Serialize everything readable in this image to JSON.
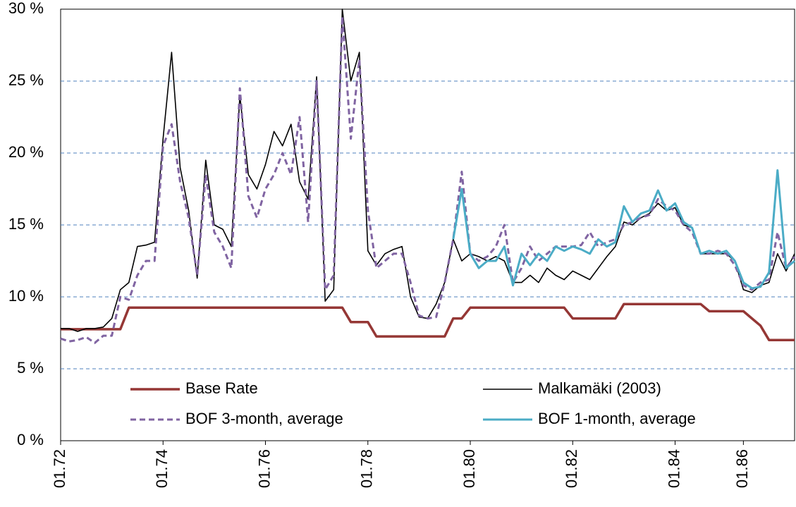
{
  "chart_data": {
    "type": "line",
    "categories": [
      "01.72",
      null,
      null,
      null,
      null,
      null,
      null,
      null,
      null,
      null,
      null,
      null,
      "01.74",
      null,
      null,
      null,
      null,
      null,
      null,
      null,
      null,
      null,
      null,
      null,
      "01.76",
      null,
      null,
      null,
      null,
      null,
      null,
      null,
      null,
      null,
      null,
      null,
      "01.78",
      null,
      null,
      null,
      null,
      null,
      null,
      null,
      null,
      null,
      null,
      null,
      "01.80",
      null,
      null,
      null,
      null,
      null,
      null,
      null,
      null,
      null,
      null,
      null,
      "01.82",
      null,
      null,
      null,
      null,
      null,
      null,
      null,
      null,
      null,
      null,
      null,
      "01.84",
      null,
      null,
      null,
      null,
      null,
      null,
      null,
      "01.86",
      null,
      null,
      null,
      null,
      null,
      null
    ],
    "series": [
      {
        "name": "Base Rate",
        "color": "#953735",
        "width": 3.5,
        "dash": false,
        "values": [
          7.75,
          7.75,
          7.75,
          7.75,
          7.75,
          7.75,
          7.75,
          7.75,
          9.25,
          9.25,
          9.25,
          9.25,
          9.25,
          9.25,
          9.25,
          9.25,
          9.25,
          9.25,
          9.25,
          9.25,
          9.25,
          9.25,
          9.25,
          9.25,
          9.25,
          9.25,
          9.25,
          9.25,
          9.25,
          9.25,
          9.25,
          9.25,
          9.25,
          9.25,
          8.25,
          8.25,
          8.25,
          7.25,
          7.25,
          7.25,
          7.25,
          7.25,
          7.25,
          7.25,
          7.25,
          7.25,
          8.5,
          8.5,
          9.25,
          9.25,
          9.25,
          9.25,
          9.25,
          9.25,
          9.25,
          9.25,
          9.25,
          9.25,
          9.25,
          9.25,
          8.5,
          8.5,
          8.5,
          8.5,
          8.5,
          8.5,
          9.5,
          9.5,
          9.5,
          9.5,
          9.5,
          9.5,
          9.5,
          9.5,
          9.5,
          9.5,
          9,
          9,
          9,
          9,
          9,
          8.5,
          8,
          7,
          7,
          7,
          7
        ]
      },
      {
        "name": "Malkamäki (2003)",
        "color": "#000000",
        "width": 1.6,
        "dash": false,
        "values": [
          7.8,
          7.8,
          7.6,
          7.8,
          7.8,
          7.9,
          8.5,
          10.5,
          11,
          13.5,
          13.6,
          13.8,
          21,
          27,
          19,
          16,
          11.3,
          19.5,
          15,
          14.7,
          13.5,
          24,
          18.5,
          17.5,
          19.2,
          21.5,
          20.5,
          22,
          18,
          16.8,
          25.3,
          9.7,
          10.5,
          30,
          25,
          27,
          13.2,
          12.2,
          13,
          13.3,
          13.5,
          10,
          8.6,
          8.5,
          9.5,
          11,
          14,
          12.5,
          13,
          12.8,
          12.5,
          12.8,
          12.5,
          11,
          11,
          11.5,
          11,
          12,
          11.5,
          11.2,
          11.8,
          11.5,
          11.2,
          12,
          12.8,
          13.5,
          15.2,
          15,
          15.5,
          15.8,
          16.5,
          16,
          16.2,
          15,
          14.8,
          13,
          13,
          13,
          13,
          12.5,
          10.5,
          10.3,
          10.8,
          11,
          13,
          11.8,
          13
        ]
      },
      {
        "name": "BOF 3-month, average",
        "color": "#8064a2",
        "width": 3,
        "dash": true,
        "values": [
          7.1,
          6.9,
          7,
          7.2,
          6.8,
          7.3,
          7.3,
          10,
          9.8,
          11.5,
          12.5,
          12.5,
          20.5,
          22,
          18,
          15.5,
          11.5,
          18.5,
          14.5,
          13.5,
          12,
          24.5,
          17,
          15.5,
          17.5,
          18.5,
          20,
          18.5,
          22.5,
          15.2,
          25,
          10.5,
          11.5,
          29.5,
          21,
          26.5,
          16,
          12,
          12.5,
          13,
          13,
          11,
          8.7,
          8.5,
          8.6,
          11,
          14,
          18.7,
          13,
          12.5,
          12.8,
          13.5,
          15,
          11,
          12,
          13.5,
          12.5,
          13,
          13.5,
          13.5,
          13.5,
          13.6,
          14.5,
          13.5,
          13.8,
          14,
          15,
          15.2,
          15.5,
          15.7,
          16.8,
          16.3,
          16,
          15,
          14.5,
          13,
          13,
          13.2,
          13,
          12.2,
          10.8,
          10.5,
          11,
          11.2,
          14.5,
          12,
          12.8
        ]
      },
      {
        "name": "BOF 1-month, average",
        "color": "#4bacc6",
        "width": 3,
        "dash": false,
        "values": [
          null,
          null,
          null,
          null,
          null,
          null,
          null,
          null,
          null,
          null,
          null,
          null,
          null,
          null,
          null,
          null,
          null,
          null,
          null,
          null,
          null,
          null,
          null,
          null,
          null,
          null,
          null,
          null,
          null,
          null,
          null,
          null,
          null,
          null,
          null,
          null,
          null,
          null,
          null,
          null,
          null,
          null,
          null,
          null,
          null,
          null,
          14,
          17.5,
          13,
          12,
          12.5,
          12.5,
          13.5,
          10.8,
          13,
          12.2,
          13,
          12.5,
          13.5,
          13.2,
          13.5,
          13.3,
          13,
          14,
          13.5,
          13.8,
          16.3,
          15.2,
          15.8,
          16,
          17.4,
          16,
          16.5,
          15.2,
          14.8,
          13,
          13.2,
          13,
          13.2,
          12.5,
          11,
          10.6,
          10.7,
          11.7,
          18.8,
          12,
          12.5
        ]
      }
    ],
    "ylim": [
      0,
      30
    ],
    "yticks": [
      {
        "value": 0,
        "label": "0 %"
      },
      {
        "value": 5,
        "label": "5 %"
      },
      {
        "value": 10,
        "label": "10 %"
      },
      {
        "value": 15,
        "label": "15 %"
      },
      {
        "value": 20,
        "label": "20 %"
      },
      {
        "value": 25,
        "label": "25 %"
      },
      {
        "value": 30,
        "label": "30 %"
      }
    ],
    "grid": true
  }
}
